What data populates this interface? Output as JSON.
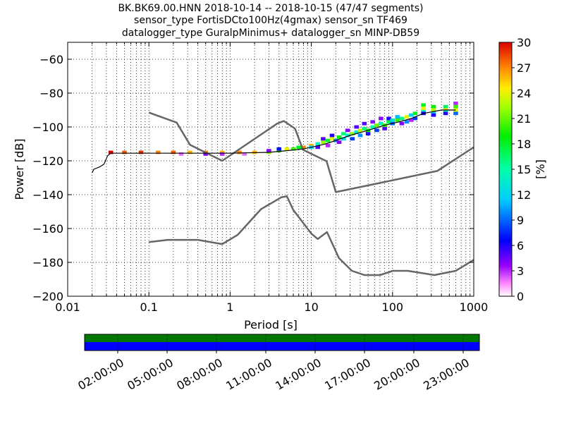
{
  "chart_data": [
    {
      "type": "heatmap",
      "title_lines": [
        "BK.BK69.00.HNN   2018-10-14 -- 2018-10-15  (47/47 segments)",
        "sensor_type FortisDCto100Hz(4gmax) sensor_sn TF469",
        "datalogger_type GuralpMinimus+ datalogger_sn MINP-DB59"
      ],
      "xlabel": "Period [s]",
      "ylabel": "Power [dB]",
      "xscale": "log",
      "xlim": [
        0.01,
        1000
      ],
      "ylim": [
        -200,
        -50
      ],
      "xtick_values": [
        0.01,
        0.1,
        1,
        10,
        100,
        1000
      ],
      "xtick_labels": [
        "0.01",
        "0.1",
        "1",
        "10",
        "100",
        "1000"
      ],
      "ytick_values": [
        -60,
        -80,
        -100,
        -120,
        -140,
        -160,
        -180,
        -200
      ],
      "ytick_labels": [
        "−60",
        "−80",
        "−100",
        "−120",
        "−140",
        "−160",
        "−180",
        "−200"
      ],
      "grid": true,
      "colorbar": {
        "label": "[%]",
        "range": [
          0,
          30
        ],
        "tick_values": [
          0,
          3,
          6,
          9,
          12,
          15,
          18,
          21,
          24,
          27,
          30
        ],
        "tick_labels": [
          "0",
          "3",
          "6",
          "9",
          "12",
          "15",
          "18",
          "21",
          "24",
          "27",
          "30"
        ]
      },
      "series": [
        {
          "role": "noise-model-high",
          "color": "#666666",
          "points": [
            [
              0.1,
              -91.5
            ],
            [
              0.22,
              -97.4
            ],
            [
              0.32,
              -110.5
            ],
            [
              0.8,
              -120
            ],
            [
              3.8,
              -98
            ],
            [
              4.6,
              -96.5
            ],
            [
              6.3,
              -101
            ],
            [
              7.9,
              -113.5
            ],
            [
              15.4,
              -120.2
            ],
            [
              20,
              -138.5
            ],
            [
              354.8,
              -126
            ],
            [
              1000,
              -112
            ]
          ]
        },
        {
          "role": "noise-model-low",
          "color": "#666666",
          "points": [
            [
              0.1,
              -168
            ],
            [
              0.17,
              -166.7
            ],
            [
              0.4,
              -166.7
            ],
            [
              0.8,
              -169.2
            ],
            [
              1.24,
              -163.7
            ],
            [
              2.4,
              -148.6
            ],
            [
              4.3,
              -141.5
            ],
            [
              5,
              -141
            ],
            [
              6,
              -149
            ],
            [
              10,
              -163
            ],
            [
              12,
              -166.2
            ],
            [
              15.6,
              -162.1
            ],
            [
              21.9,
              -177.5
            ],
            [
              31.6,
              -185
            ],
            [
              45,
              -187.5
            ],
            [
              70,
              -187.5
            ],
            [
              101,
              -185
            ],
            [
              154,
              -185
            ],
            [
              328,
              -187.5
            ],
            [
              600,
              -185
            ],
            [
              1000,
              -178.5
            ]
          ]
        },
        {
          "role": "mode",
          "color": "#000000",
          "points": [
            [
              0.02,
              -127
            ],
            [
              0.021,
              -125
            ],
            [
              0.025,
              -123.5
            ],
            [
              0.028,
              -122
            ],
            [
              0.031,
              -117
            ],
            [
              0.034,
              -115.5
            ],
            [
              1,
              -115.5
            ],
            [
              3,
              -115
            ],
            [
              5,
              -114
            ],
            [
              8,
              -113
            ],
            [
              10,
              -112
            ],
            [
              15,
              -110
            ],
            [
              20,
              -108
            ],
            [
              30,
              -105
            ],
            [
              50,
              -102
            ],
            [
              80,
              -99
            ],
            [
              120,
              -97
            ],
            [
              170,
              -95
            ],
            [
              240,
              -92
            ],
            [
              400,
              -90
            ],
            [
              600,
              -90
            ]
          ]
        }
      ],
      "heat_cells": [
        {
          "p": 0.034,
          "db": -115,
          "v": 30
        },
        {
          "p": 0.05,
          "db": -115,
          "v": 28
        },
        {
          "p": 0.08,
          "db": -115,
          "v": 29
        },
        {
          "p": 0.13,
          "db": -115,
          "v": 27
        },
        {
          "p": 0.2,
          "db": -115,
          "v": 28
        },
        {
          "p": 0.32,
          "db": -115,
          "v": 26
        },
        {
          "p": 0.5,
          "db": -115,
          "v": 27
        },
        {
          "p": 0.8,
          "db": -115,
          "v": 26
        },
        {
          "p": 1.3,
          "db": -115,
          "v": 27
        },
        {
          "p": 2,
          "db": -115,
          "v": 26
        },
        {
          "p": 0.25,
          "db": -116,
          "v": 2
        },
        {
          "p": 0.5,
          "db": -116,
          "v": 4
        },
        {
          "p": 0.8,
          "db": -116,
          "v": 3
        },
        {
          "p": 1.5,
          "db": -116,
          "v": 2
        },
        {
          "p": 3,
          "db": -115,
          "v": 22
        },
        {
          "p": 3,
          "db": -114,
          "v": 4
        },
        {
          "p": 4,
          "db": -114,
          "v": 20
        },
        {
          "p": 4,
          "db": -113,
          "v": 7
        },
        {
          "p": 5,
          "db": -113,
          "v": 24
        },
        {
          "p": 6,
          "db": -113,
          "v": 20
        },
        {
          "p": 7,
          "db": -112,
          "v": 18
        },
        {
          "p": 8,
          "db": -112,
          "v": 27
        },
        {
          "p": 10,
          "db": -111,
          "v": 26
        },
        {
          "p": 10,
          "db": -112,
          "v": 12
        },
        {
          "p": 12,
          "db": -110,
          "v": 14
        },
        {
          "p": 12,
          "db": -112,
          "v": 5
        },
        {
          "p": 14,
          "db": -109,
          "v": 22
        },
        {
          "p": 14,
          "db": -107,
          "v": 5
        },
        {
          "p": 16,
          "db": -108,
          "v": 18
        },
        {
          "p": 16,
          "db": -111,
          "v": 3
        },
        {
          "p": 18,
          "db": -107,
          "v": 24
        },
        {
          "p": 18,
          "db": -105,
          "v": 6
        },
        {
          "p": 20,
          "db": -108,
          "v": 10
        },
        {
          "p": 22,
          "db": -106,
          "v": 19
        },
        {
          "p": 22,
          "db": -109,
          "v": 4
        },
        {
          "p": 25,
          "db": -104,
          "v": 16
        },
        {
          "p": 25,
          "db": -107,
          "v": 12
        },
        {
          "p": 28,
          "db": -105,
          "v": 14
        },
        {
          "p": 28,
          "db": -102,
          "v": 4
        },
        {
          "p": 32,
          "db": -104,
          "v": 22
        },
        {
          "p": 32,
          "db": -107,
          "v": 8
        },
        {
          "p": 36,
          "db": -103,
          "v": 13
        },
        {
          "p": 36,
          "db": -100,
          "v": 5
        },
        {
          "p": 40,
          "db": -102,
          "v": 23
        },
        {
          "p": 40,
          "db": -105,
          "v": 10
        },
        {
          "p": 45,
          "db": -101,
          "v": 16
        },
        {
          "p": 45,
          "db": -98,
          "v": 5
        },
        {
          "p": 50,
          "db": -102,
          "v": 19
        },
        {
          "p": 50,
          "db": -104,
          "v": 6
        },
        {
          "p": 57,
          "db": -100,
          "v": 15
        },
        {
          "p": 57,
          "db": -97,
          "v": 4
        },
        {
          "p": 64,
          "db": -99,
          "v": 21
        },
        {
          "p": 64,
          "db": -102,
          "v": 8
        },
        {
          "p": 72,
          "db": -98,
          "v": 14
        },
        {
          "p": 72,
          "db": -95,
          "v": 4
        },
        {
          "p": 80,
          "db": -99,
          "v": 20
        },
        {
          "p": 80,
          "db": -101,
          "v": 5
        },
        {
          "p": 90,
          "db": -97,
          "v": 17
        },
        {
          "p": 90,
          "db": -95,
          "v": 6
        },
        {
          "p": 100,
          "db": -96,
          "v": 13
        },
        {
          "p": 100,
          "db": -98,
          "v": 9
        },
        {
          "p": 115,
          "db": -96,
          "v": 20
        },
        {
          "p": 115,
          "db": -94,
          "v": 11
        },
        {
          "p": 130,
          "db": -95,
          "v": 16
        },
        {
          "p": 130,
          "db": -98,
          "v": 4
        },
        {
          "p": 150,
          "db": -94,
          "v": 24
        },
        {
          "p": 150,
          "db": -97,
          "v": 10
        },
        {
          "p": 170,
          "db": -93,
          "v": 12
        },
        {
          "p": 170,
          "db": -96,
          "v": 3
        },
        {
          "p": 190,
          "db": -92,
          "v": 18
        },
        {
          "p": 190,
          "db": -95,
          "v": 8
        },
        {
          "p": 240,
          "db": -87,
          "v": 18
        },
        {
          "p": 240,
          "db": -89,
          "v": 24
        },
        {
          "p": 240,
          "db": -91,
          "v": 14
        },
        {
          "p": 240,
          "db": -92,
          "v": 6
        },
        {
          "p": 320,
          "db": -88,
          "v": 19
        },
        {
          "p": 320,
          "db": -90,
          "v": 23
        },
        {
          "p": 320,
          "db": -92,
          "v": 12
        },
        {
          "p": 320,
          "db": -93,
          "v": 6
        },
        {
          "p": 450,
          "db": -88,
          "v": 17
        },
        {
          "p": 450,
          "db": -90,
          "v": 25
        },
        {
          "p": 450,
          "db": -91,
          "v": 14
        },
        {
          "p": 450,
          "db": -92,
          "v": 6
        },
        {
          "p": 600,
          "db": -86,
          "v": 3
        },
        {
          "p": 600,
          "db": -88,
          "v": 20
        },
        {
          "p": 600,
          "db": -90,
          "v": 24
        },
        {
          "p": 600,
          "db": -92,
          "v": 9
        }
      ]
    },
    {
      "type": "table",
      "time_ticks": [
        "02:00:00",
        "05:00:00",
        "08:00:00",
        "11:00:00",
        "14:00:00",
        "17:00:00",
        "20:00:00",
        "23:00:00"
      ],
      "bar_colors": {
        "top": "#007700",
        "bottom": "#0000ff"
      }
    }
  ]
}
